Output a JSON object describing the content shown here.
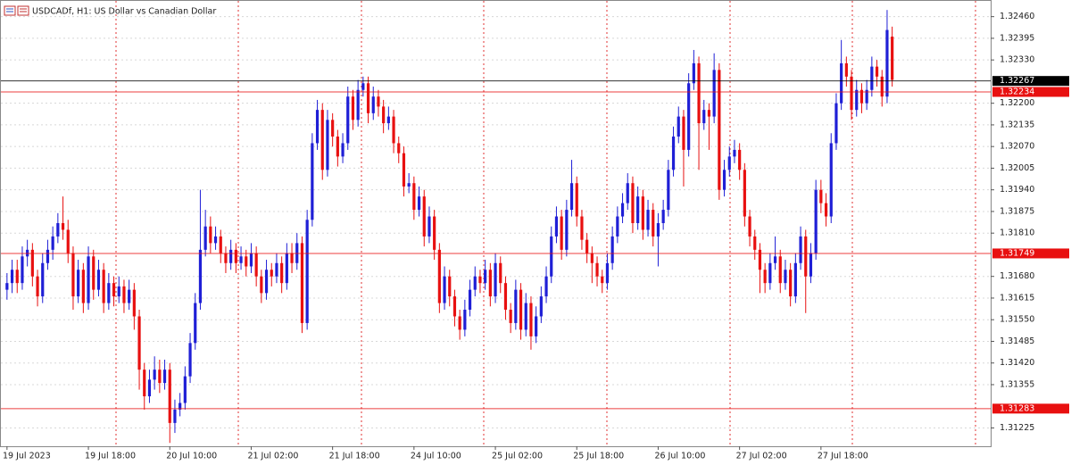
{
  "chart_data": {
    "type": "candlestick",
    "title": "USDCADf, H1:  US Dollar vs Canadian Dollar",
    "up_color": "#1f1fd6",
    "down_color": "#e81010",
    "grid": true,
    "ylim": [
      1.3117,
      1.3251
    ],
    "yticks": [
      {
        "value": 1.3246,
        "label": "1.32460"
      },
      1.32395,
      {
        "value": 1.3233,
        "label": "1.32330"
      },
      {
        "value": 1.322,
        "label": "1.32200"
      },
      1.32135,
      {
        "value": 1.3207,
        "label": "1.32070"
      },
      1.32005,
      {
        "value": 1.3194,
        "label": "1.31940"
      },
      1.31875,
      {
        "value": 1.3181,
        "label": "1.31810"
      },
      {
        "value": 1.3168,
        "label": "1.31680"
      },
      1.31615,
      {
        "value": 1.3155,
        "label": "1.31550"
      },
      1.31485,
      {
        "value": 1.3142,
        "label": "1.31420"
      },
      1.31355,
      1.31225
    ],
    "levels": [
      {
        "value": 1.32267,
        "color": "#000000"
      },
      {
        "value": 1.32234,
        "color": "#e81010"
      },
      {
        "value": 1.31749,
        "color": "#e81010"
      },
      {
        "value": 1.31283,
        "color": "#e81010"
      }
    ],
    "categories": [
      "19 Jul 2023",
      null,
      null,
      null,
      null,
      null,
      null,
      null,
      null,
      null,
      null,
      null,
      null,
      null,
      null,
      null,
      "19 Jul 18:00",
      null,
      null,
      null,
      null,
      null,
      null,
      null,
      null,
      null,
      null,
      null,
      null,
      null,
      null,
      null,
      "20 Jul 10:00",
      null,
      null,
      null,
      null,
      null,
      null,
      null,
      null,
      null,
      null,
      null,
      null,
      null,
      null,
      null,
      "21 Jul 02:00",
      null,
      null,
      null,
      null,
      null,
      null,
      null,
      null,
      null,
      null,
      null,
      null,
      null,
      null,
      null,
      "21 Jul 18:00",
      null,
      null,
      null,
      null,
      null,
      null,
      null,
      null,
      null,
      null,
      null,
      null,
      null,
      null,
      null,
      "24 Jul 10:00",
      null,
      null,
      null,
      null,
      null,
      null,
      null,
      null,
      null,
      null,
      null,
      null,
      null,
      null,
      null,
      "25 Jul 02:00",
      null,
      null,
      null,
      null,
      null,
      null,
      null,
      null,
      null,
      null,
      null,
      null,
      null,
      null,
      null,
      "25 Jul 18:00",
      null,
      null,
      null,
      null,
      null,
      null,
      null,
      null,
      null,
      null,
      null,
      null,
      null,
      null,
      null,
      "26 Jul 10:00",
      null,
      null,
      null,
      null,
      null,
      null,
      null,
      null,
      null,
      null,
      null,
      null,
      null,
      null,
      null,
      "27 Jul 02:00",
      null,
      null,
      null,
      null,
      null,
      null,
      null,
      null,
      null,
      null,
      null,
      null,
      null,
      null,
      null,
      "27 Jul 18:00",
      null,
      null,
      null,
      null,
      null,
      null,
      null,
      null,
      null,
      null,
      null,
      null,
      null,
      null
    ],
    "ohlc": [
      [
        1.3164,
        1.3169,
        1.3161,
        1.3166
      ],
      [
        1.3166,
        1.3173,
        1.3163,
        1.317
      ],
      [
        1.317,
        1.3173,
        1.3163,
        1.3166
      ],
      [
        1.3166,
        1.3177,
        1.3164,
        1.3174
      ],
      [
        1.3174,
        1.3179,
        1.3171,
        1.3176
      ],
      [
        1.3176,
        1.3178,
        1.3165,
        1.3168
      ],
      [
        1.3168,
        1.317,
        1.3159,
        1.3162
      ],
      [
        1.3162,
        1.3175,
        1.316,
        1.3172
      ],
      [
        1.3172,
        1.3179,
        1.317,
        1.3176
      ],
      [
        1.3176,
        1.3183,
        1.3173,
        1.318
      ],
      [
        1.318,
        1.3187,
        1.3178,
        1.3184
      ],
      [
        1.3184,
        1.3192,
        1.3179,
        1.3182
      ],
      [
        1.3182,
        1.3185,
        1.3172,
        1.3175
      ],
      [
        1.3175,
        1.3177,
        1.3158,
        1.3162
      ],
      [
        1.3162,
        1.3173,
        1.316,
        1.317
      ],
      [
        1.317,
        1.3172,
        1.3157,
        1.316
      ],
      [
        1.316,
        1.3177,
        1.3158,
        1.3174
      ],
      [
        1.3174,
        1.3176,
        1.3161,
        1.3164
      ],
      [
        1.3164,
        1.3173,
        1.3162,
        1.317
      ],
      [
        1.317,
        1.3172,
        1.3157,
        1.316
      ],
      [
        1.316,
        1.3169,
        1.3158,
        1.3166
      ],
      [
        1.3166,
        1.3168,
        1.3159,
        1.3162
      ],
      [
        1.3162,
        1.3168,
        1.316,
        1.3165
      ],
      [
        1.3165,
        1.3167,
        1.3157,
        1.316
      ],
      [
        1.316,
        1.3167,
        1.3158,
        1.3164
      ],
      [
        1.3164,
        1.3166,
        1.3152,
        1.3156
      ],
      [
        1.3156,
        1.3158,
        1.3134,
        1.314
      ],
      [
        1.314,
        1.3142,
        1.3128,
        1.3132
      ],
      [
        1.3132,
        1.314,
        1.313,
        1.3137
      ],
      [
        1.3137,
        1.3144,
        1.3134,
        1.314
      ],
      [
        1.314,
        1.3143,
        1.3133,
        1.3136
      ],
      [
        1.3136,
        1.3143,
        1.3134,
        1.314
      ],
      [
        1.314,
        1.3142,
        1.3118,
        1.3124
      ],
      [
        1.3124,
        1.3131,
        1.3121,
        1.3128
      ],
      [
        1.3128,
        1.3133,
        1.3126,
        1.313
      ],
      [
        1.313,
        1.3141,
        1.3128,
        1.3138
      ],
      [
        1.3138,
        1.3151,
        1.3136,
        1.3148
      ],
      [
        1.3148,
        1.3163,
        1.3146,
        1.316
      ],
      [
        1.316,
        1.3194,
        1.3158,
        1.3176
      ],
      [
        1.3176,
        1.3188,
        1.3174,
        1.3183
      ],
      [
        1.3183,
        1.3186,
        1.3175,
        1.3178
      ],
      [
        1.3178,
        1.3183,
        1.3176,
        1.318
      ],
      [
        1.318,
        1.3182,
        1.3172,
        1.3175
      ],
      [
        1.3175,
        1.3177,
        1.3169,
        1.3172
      ],
      [
        1.3172,
        1.3179,
        1.317,
        1.3176
      ],
      [
        1.3176,
        1.3178,
        1.3169,
        1.3172
      ],
      [
        1.3172,
        1.3177,
        1.317,
        1.3174
      ],
      [
        1.3174,
        1.3176,
        1.3168,
        1.3171
      ],
      [
        1.3171,
        1.3178,
        1.3169,
        1.3175
      ],
      [
        1.3175,
        1.3177,
        1.3165,
        1.3168
      ],
      [
        1.3168,
        1.317,
        1.316,
        1.3163
      ],
      [
        1.3163,
        1.3173,
        1.3161,
        1.317
      ],
      [
        1.317,
        1.3172,
        1.3165,
        1.3168
      ],
      [
        1.3168,
        1.3175,
        1.3166,
        1.3172
      ],
      [
        1.3172,
        1.3174,
        1.3163,
        1.3166
      ],
      [
        1.3166,
        1.3178,
        1.3164,
        1.3175
      ],
      [
        1.3175,
        1.3178,
        1.3169,
        1.3172
      ],
      [
        1.3172,
        1.3181,
        1.317,
        1.3178
      ],
      [
        1.3178,
        1.318,
        1.3151,
        1.3154
      ],
      [
        1.3154,
        1.3188,
        1.3152,
        1.3185
      ],
      [
        1.3185,
        1.3211,
        1.3183,
        1.3208
      ],
      [
        1.3208,
        1.3221,
        1.3206,
        1.3218
      ],
      [
        1.3218,
        1.322,
        1.3197,
        1.32
      ],
      [
        1.32,
        1.3218,
        1.3198,
        1.3215
      ],
      [
        1.3215,
        1.3217,
        1.3207,
        1.321
      ],
      [
        1.321,
        1.3212,
        1.3201,
        1.3204
      ],
      [
        1.3204,
        1.3211,
        1.3202,
        1.3208
      ],
      [
        1.3208,
        1.3225,
        1.3206,
        1.3222
      ],
      [
        1.3222,
        1.3224,
        1.3212,
        1.3215
      ],
      [
        1.3215,
        1.3227,
        1.3213,
        1.3224
      ],
      [
        1.3224,
        1.3228,
        1.3222,
        1.3226
      ],
      [
        1.3226,
        1.3228,
        1.3214,
        1.3217
      ],
      [
        1.3217,
        1.3225,
        1.3215,
        1.3222
      ],
      [
        1.3222,
        1.3224,
        1.3216,
        1.3219
      ],
      [
        1.3219,
        1.3221,
        1.3211,
        1.3214
      ],
      [
        1.3214,
        1.3219,
        1.3212,
        1.3216
      ],
      [
        1.3216,
        1.3218,
        1.3205,
        1.3208
      ],
      [
        1.3208,
        1.321,
        1.3202,
        1.3205
      ],
      [
        1.3205,
        1.3207,
        1.3192,
        1.3195
      ],
      [
        1.3195,
        1.3199,
        1.3193,
        1.3196
      ],
      [
        1.3196,
        1.3198,
        1.3185,
        1.3188
      ],
      [
        1.3188,
        1.3195,
        1.3186,
        1.3192
      ],
      [
        1.3192,
        1.3194,
        1.3177,
        1.318
      ],
      [
        1.318,
        1.3189,
        1.3178,
        1.3186
      ],
      [
        1.3186,
        1.3188,
        1.3173,
        1.3176
      ],
      [
        1.3176,
        1.3178,
        1.3157,
        1.316
      ],
      [
        1.316,
        1.3171,
        1.3158,
        1.3168
      ],
      [
        1.3168,
        1.317,
        1.3159,
        1.3162
      ],
      [
        1.3162,
        1.3164,
        1.3153,
        1.3156
      ],
      [
        1.3156,
        1.3158,
        1.3149,
        1.3152
      ],
      [
        1.3152,
        1.3161,
        1.315,
        1.3158
      ],
      [
        1.3158,
        1.3167,
        1.3156,
        1.3164
      ],
      [
        1.3164,
        1.3171,
        1.3162,
        1.3168
      ],
      [
        1.3168,
        1.317,
        1.3163,
        1.3166
      ],
      [
        1.3166,
        1.3173,
        1.3164,
        1.317
      ],
      [
        1.317,
        1.3172,
        1.3159,
        1.3162
      ],
      [
        1.3162,
        1.3175,
        1.316,
        1.3172
      ],
      [
        1.3172,
        1.3174,
        1.3163,
        1.3166
      ],
      [
        1.3166,
        1.3168,
        1.3155,
        1.3158
      ],
      [
        1.3158,
        1.316,
        1.3151,
        1.3154
      ],
      [
        1.3154,
        1.3167,
        1.3152,
        1.3164
      ],
      [
        1.3164,
        1.3166,
        1.3149,
        1.3152
      ],
      [
        1.3152,
        1.3163,
        1.315,
        1.316
      ],
      [
        1.316,
        1.3162,
        1.3146,
        1.315
      ],
      [
        1.315,
        1.3159,
        1.3148,
        1.3156
      ],
      [
        1.3156,
        1.3165,
        1.3154,
        1.3162
      ],
      [
        1.3162,
        1.3171,
        1.316,
        1.3168
      ],
      [
        1.3168,
        1.3183,
        1.3166,
        1.318
      ],
      [
        1.318,
        1.3189,
        1.3178,
        1.3186
      ],
      [
        1.3186,
        1.3188,
        1.3173,
        1.3176
      ],
      [
        1.3176,
        1.3191,
        1.3174,
        1.3188
      ],
      [
        1.3188,
        1.3203,
        1.3186,
        1.3196
      ],
      [
        1.3196,
        1.3198,
        1.3183,
        1.3186
      ],
      [
        1.3186,
        1.3188,
        1.3176,
        1.3179
      ],
      [
        1.3179,
        1.3181,
        1.3172,
        1.3175
      ],
      [
        1.3175,
        1.3177,
        1.3166,
        1.3172
      ],
      [
        1.3172,
        1.3174,
        1.3165,
        1.3168
      ],
      [
        1.3168,
        1.317,
        1.3163,
        1.3166
      ],
      [
        1.3166,
        1.3175,
        1.3164,
        1.3172
      ],
      [
        1.3172,
        1.3183,
        1.317,
        1.318
      ],
      [
        1.318,
        1.3189,
        1.3178,
        1.3186
      ],
      [
        1.3186,
        1.3193,
        1.3184,
        1.319
      ],
      [
        1.319,
        1.3199,
        1.3188,
        1.3196
      ],
      [
        1.3196,
        1.3198,
        1.3181,
        1.3184
      ],
      [
        1.3184,
        1.3195,
        1.3182,
        1.3192
      ],
      [
        1.3192,
        1.3194,
        1.3179,
        1.3182
      ],
      [
        1.3182,
        1.3191,
        1.318,
        1.3188
      ],
      [
        1.3188,
        1.319,
        1.3177,
        1.318
      ],
      [
        1.318,
        1.3187,
        1.3171,
        1.3184
      ],
      [
        1.3184,
        1.3191,
        1.3182,
        1.3188
      ],
      [
        1.3188,
        1.3203,
        1.3186,
        1.32
      ],
      [
        1.32,
        1.3213,
        1.3198,
        1.321
      ],
      [
        1.321,
        1.3219,
        1.3208,
        1.3216
      ],
      [
        1.3216,
        1.3218,
        1.3195,
        1.3206
      ],
      [
        1.3206,
        1.3229,
        1.3204,
        1.3226
      ],
      [
        1.3226,
        1.3236,
        1.3224,
        1.3232
      ],
      [
        1.3232,
        1.3234,
        1.32,
        1.3214
      ],
      [
        1.3214,
        1.3221,
        1.3212,
        1.3218
      ],
      [
        1.3218,
        1.322,
        1.3206,
        1.3216
      ],
      [
        1.3216,
        1.3235,
        1.3214,
        1.323
      ],
      [
        1.323,
        1.3232,
        1.3191,
        1.3194
      ],
      [
        1.3194,
        1.3203,
        1.3192,
        1.32
      ],
      [
        1.32,
        1.3207,
        1.3198,
        1.3204
      ],
      [
        1.3204,
        1.3209,
        1.3202,
        1.3206
      ],
      [
        1.3206,
        1.3208,
        1.3197,
        1.32
      ],
      [
        1.32,
        1.3202,
        1.3183,
        1.3186
      ],
      [
        1.3186,
        1.3188,
        1.3177,
        1.318
      ],
      [
        1.318,
        1.3182,
        1.3173,
        1.3176
      ],
      [
        1.3176,
        1.3178,
        1.3163,
        1.317
      ],
      [
        1.317,
        1.3172,
        1.3163,
        1.3166
      ],
      [
        1.3166,
        1.3175,
        1.3164,
        1.3172
      ],
      [
        1.3172,
        1.318,
        1.317,
        1.3174
      ],
      [
        1.3174,
        1.3176,
        1.3163,
        1.3166
      ],
      [
        1.3166,
        1.3173,
        1.3164,
        1.317
      ],
      [
        1.317,
        1.3172,
        1.3159,
        1.3162
      ],
      [
        1.3162,
        1.3175,
        1.316,
        1.3172
      ],
      [
        1.3172,
        1.3183,
        1.317,
        1.318
      ],
      [
        1.318,
        1.3182,
        1.3157,
        1.3168
      ],
      [
        1.3168,
        1.3178,
        1.3166,
        1.3175
      ],
      [
        1.3175,
        1.3197,
        1.3173,
        1.3194
      ],
      [
        1.3194,
        1.3197,
        1.3187,
        1.319
      ],
      [
        1.319,
        1.3193,
        1.3183,
        1.3186
      ],
      [
        1.3186,
        1.3211,
        1.3184,
        1.3208
      ],
      [
        1.3208,
        1.3223,
        1.3206,
        1.322
      ],
      [
        1.322,
        1.3239,
        1.3218,
        1.3232
      ],
      [
        1.3232,
        1.3234,
        1.3225,
        1.3228
      ],
      [
        1.3228,
        1.323,
        1.3215,
        1.3218
      ],
      [
        1.3218,
        1.3227,
        1.3216,
        1.3224
      ],
      [
        1.3224,
        1.3226,
        1.3217,
        1.322
      ],
      [
        1.322,
        1.3227,
        1.3218,
        1.3224
      ],
      [
        1.3224,
        1.3234,
        1.3222,
        1.3231
      ],
      [
        1.3231,
        1.3233,
        1.3225,
        1.3228
      ],
      [
        1.3228,
        1.323,
        1.3219,
        1.3222
      ],
      [
        1.3222,
        1.3248,
        1.322,
        1.3242
      ],
      [
        1.324,
        1.3243,
        1.3225,
        1.3227
      ]
    ]
  }
}
